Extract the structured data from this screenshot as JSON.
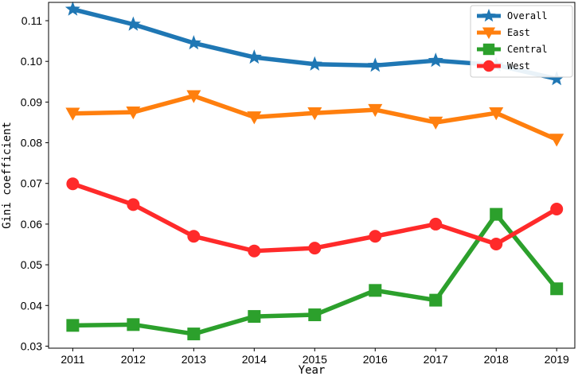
{
  "chart_data": {
    "type": "line",
    "title": "",
    "xlabel": "Year",
    "ylabel": "Gini coefficient",
    "x": [
      2011,
      2012,
      2013,
      2014,
      2015,
      2016,
      2017,
      2018,
      2019
    ],
    "x_ticks": [
      "2011",
      "2012",
      "2013",
      "2014",
      "2015",
      "2016",
      "2017",
      "2018",
      "2019"
    ],
    "xlim": [
      2010.6,
      2019.3
    ],
    "ylim": [
      0.0295,
      0.1145
    ],
    "y_ticks": [
      0.03,
      0.04,
      0.05,
      0.06,
      0.07,
      0.08,
      0.09,
      0.1,
      0.11
    ],
    "y_tick_labels": [
      "0.03",
      "0.04",
      "0.05",
      "0.06",
      "0.07",
      "0.08",
      "0.09",
      "0.10",
      "0.11"
    ],
    "grid": false,
    "legend_position": "top-right",
    "series": [
      {
        "name": "Overall",
        "color": "#1f77b4",
        "marker": "star",
        "values": [
          0.1128,
          0.1091,
          0.1045,
          0.101,
          0.0993,
          0.099,
          0.1002,
          0.0991,
          0.0957
        ]
      },
      {
        "name": "East",
        "color": "#ff7f0e",
        "marker": "triangle-down",
        "values": [
          0.0872,
          0.0875,
          0.0915,
          0.0863,
          0.0873,
          0.0881,
          0.085,
          0.0873,
          0.0808
        ]
      },
      {
        "name": "Central",
        "color": "#2ca02c",
        "marker": "square",
        "values": [
          0.0351,
          0.0353,
          0.033,
          0.0373,
          0.0377,
          0.0437,
          0.0413,
          0.0624,
          0.0441
        ]
      },
      {
        "name": "West",
        "color": "#ff2a2a",
        "marker": "circle",
        "values": [
          0.0699,
          0.0648,
          0.057,
          0.0534,
          0.0541,
          0.057,
          0.06,
          0.0551,
          0.0637
        ]
      }
    ]
  }
}
